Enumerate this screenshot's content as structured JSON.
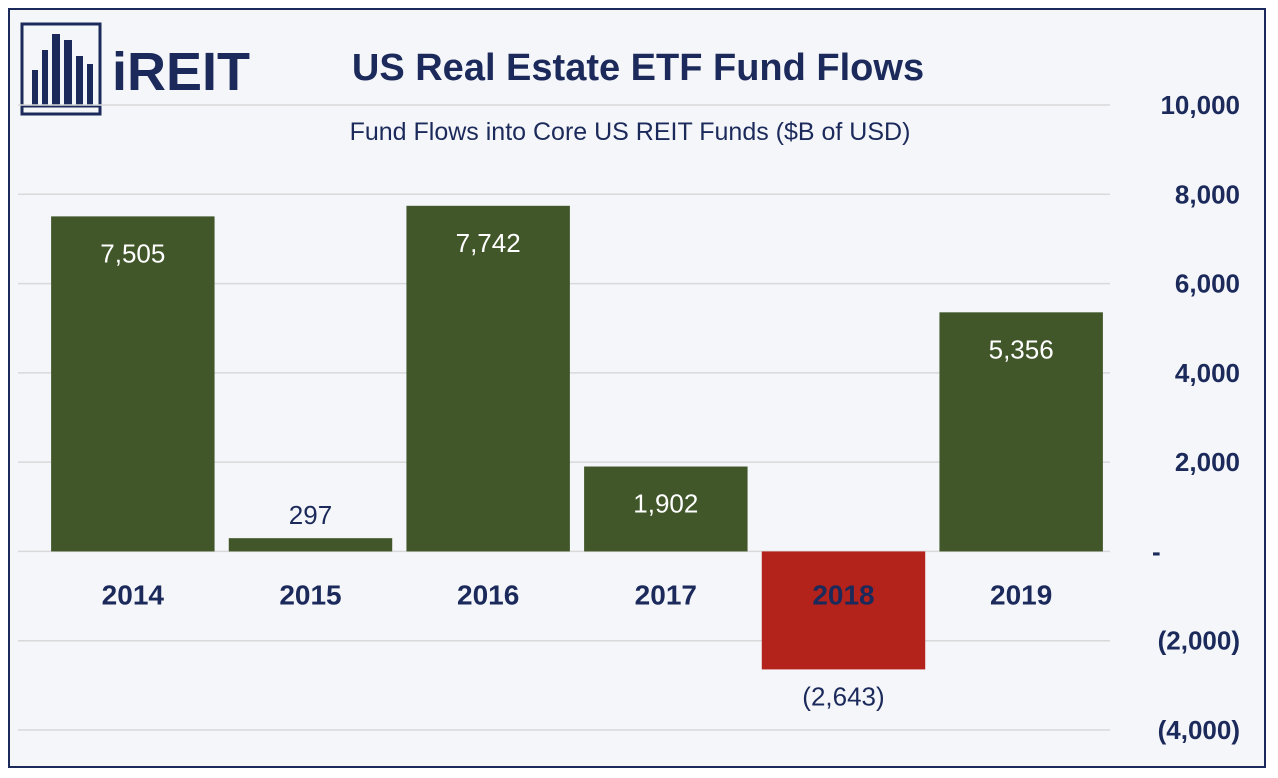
{
  "logo": {
    "text": "iREIT"
  },
  "chart_data": {
    "type": "bar",
    "title": "US Real Estate ETF Fund Flows",
    "subtitle": "Fund Flows into Core US REIT Funds ($B of USD)",
    "categories": [
      "2014",
      "2015",
      "2016",
      "2017",
      "2018",
      "2019"
    ],
    "values": [
      7505,
      297,
      7742,
      1902,
      -2643,
      5356
    ],
    "data_labels": [
      "7,505",
      "297",
      "7,742",
      "1,902",
      "(2,643)",
      "5,356"
    ],
    "ylim": [
      -4000,
      10000
    ],
    "yticks": [
      10000,
      8000,
      6000,
      4000,
      2000,
      0,
      -2000,
      -4000
    ],
    "ytick_labels": [
      "10,000",
      "8,000",
      "6,000",
      "4,000",
      "2,000",
      "-",
      "(2,000)",
      "(4,000)"
    ],
    "y_axis_side": "right",
    "grid": true,
    "legend": "none",
    "colors": {
      "positive": "#41572a",
      "negative": "#b3231b",
      "text": "#1b2a5a",
      "grid": "#d9d9d9",
      "label_on_bar": "#ffffff",
      "label_outside": "#1b2a5a"
    }
  }
}
